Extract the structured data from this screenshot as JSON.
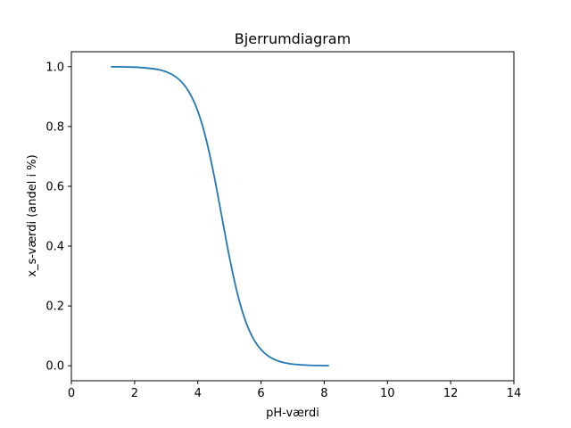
{
  "chart_data": {
    "type": "line",
    "title": "Bjerrumdiagram",
    "xlabel": "pH-værdi",
    "ylabel": "x_s-værdi (andel i %)",
    "xlim": [
      0,
      14
    ],
    "ylim": [
      -0.05,
      1.05
    ],
    "xticks": [
      0,
      2,
      4,
      6,
      8,
      10,
      12,
      14
    ],
    "yticks": [
      0.0,
      0.2,
      0.4,
      0.6,
      0.8,
      1.0
    ],
    "xtick_labels": [
      "0",
      "2",
      "4",
      "6",
      "8",
      "10",
      "12",
      "14"
    ],
    "ytick_labels": [
      "0.0",
      "0.2",
      "0.4",
      "0.6",
      "0.8",
      "1.0"
    ],
    "grid": false,
    "legend": "none",
    "series": [
      {
        "color": "#1f77b4",
        "x": [
          1.25,
          1.75,
          2.25,
          2.75,
          3.0,
          3.25,
          3.5,
          3.75,
          4.0,
          4.25,
          4.5,
          4.75,
          5.0,
          5.25,
          5.5,
          5.75,
          6.0,
          6.25,
          6.5,
          6.75,
          7.0,
          7.5,
          8.15
        ],
        "y": [
          0.9997,
          0.999,
          0.9969,
          0.9903,
          0.9828,
          0.9697,
          0.9474,
          0.9102,
          0.8513,
          0.7627,
          0.6435,
          0.5036,
          0.3633,
          0.2425,
          0.1524,
          0.092,
          0.0541,
          0.0311,
          0.0177,
          0.01,
          0.0056,
          0.0018,
          0.0004
        ]
      }
    ]
  }
}
